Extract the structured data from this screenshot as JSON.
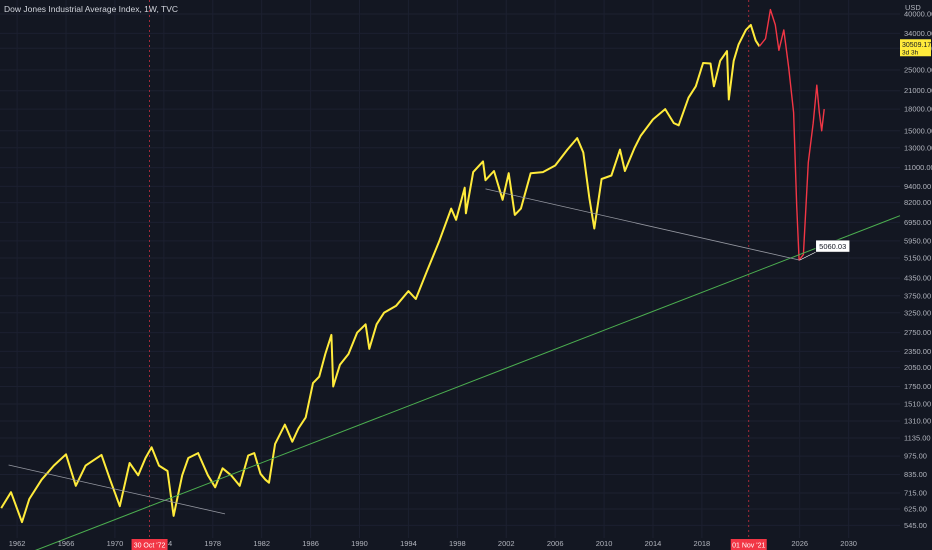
{
  "chart_data": {
    "type": "line",
    "title": "Dow Jones Industrial Average Index, 1W, TVC",
    "unit": "USD",
    "log_scale": true,
    "grid": true,
    "y_ticks": [
      545,
      625,
      715,
      835,
      975,
      1135,
      1310,
      1510,
      1750,
      2050,
      2350,
      2750,
      3250,
      3750,
      4350,
      5150,
      5950,
      6950,
      8200,
      9400,
      11000,
      13000,
      15000,
      18000,
      21000,
      25000,
      30000,
      34000,
      40000
    ],
    "y_tick_labels": [
      "545.00",
      "625.00",
      "715.00",
      "835.00",
      "975.00",
      "1135.00",
      "1310.00",
      "1510.00",
      "1750.00",
      "2050.00",
      "2350.00",
      "2750.00",
      "3250.00",
      "3750.00",
      "4350.00",
      "5150.00",
      "5950.00",
      "6950.00",
      "8200.00",
      "9400.00",
      "11000.00",
      "13000.00",
      "15000.00",
      "18000.00",
      "21000.00",
      "25000.00",
      "30000.00",
      "34000.00",
      "40000.00"
    ],
    "x_ticks": [
      1962,
      1966,
      1970,
      1974,
      1978,
      1982,
      1986,
      1990,
      1994,
      1998,
      2002,
      2006,
      2010,
      2014,
      2018,
      2026,
      2030
    ],
    "x_tick_labels": [
      "1962",
      "1966",
      "1970",
      "1974",
      "1978",
      "1982",
      "1986",
      "1990",
      "1994",
      "1998",
      "2002",
      "2006",
      "2010",
      "2014",
      "2018",
      "2026",
      "2030"
    ],
    "ylim": [
      490,
      45000
    ],
    "xlim": [
      1960.6,
      2034.2
    ],
    "highlight_dates": [
      {
        "label": "30 Oct '72",
        "x": 1972.83
      },
      {
        "label": "01 Nov '21",
        "x": 2021.83
      }
    ],
    "price_badge": {
      "value": "30509.17",
      "sub": "3d 3h",
      "y": 30509.17
    },
    "annotation": {
      "label": "5060.03",
      "x": 2026.0,
      "y": 5060.03
    },
    "series": [
      {
        "role": "price",
        "color": "#ffeb3b",
        "points": [
          [
            1960.7,
            630
          ],
          [
            1961.5,
            720
          ],
          [
            1962.4,
            560
          ],
          [
            1963.0,
            680
          ],
          [
            1964.0,
            800
          ],
          [
            1965.0,
            900
          ],
          [
            1966.0,
            990
          ],
          [
            1966.8,
            760
          ],
          [
            1967.6,
            900
          ],
          [
            1968.9,
            985
          ],
          [
            1969.6,
            800
          ],
          [
            1970.4,
            640
          ],
          [
            1971.2,
            920
          ],
          [
            1971.9,
            830
          ],
          [
            1972.5,
            960
          ],
          [
            1973.0,
            1050
          ],
          [
            1973.6,
            900
          ],
          [
            1974.3,
            860
          ],
          [
            1974.8,
            590
          ],
          [
            1975.5,
            830
          ],
          [
            1976.0,
            960
          ],
          [
            1976.8,
            1000
          ],
          [
            1977.6,
            830
          ],
          [
            1978.2,
            750
          ],
          [
            1978.8,
            880
          ],
          [
            1979.5,
            830
          ],
          [
            1980.2,
            760
          ],
          [
            1980.9,
            980
          ],
          [
            1981.4,
            1000
          ],
          [
            1981.9,
            840
          ],
          [
            1982.3,
            800
          ],
          [
            1982.6,
            780
          ],
          [
            1983.1,
            1080
          ],
          [
            1983.9,
            1270
          ],
          [
            1984.5,
            1100
          ],
          [
            1985.0,
            1230
          ],
          [
            1985.6,
            1350
          ],
          [
            1986.2,
            1800
          ],
          [
            1986.7,
            1900
          ],
          [
            1987.2,
            2300
          ],
          [
            1987.7,
            2700
          ],
          [
            1987.85,
            1750
          ],
          [
            1988.4,
            2100
          ],
          [
            1989.1,
            2300
          ],
          [
            1989.8,
            2750
          ],
          [
            1990.5,
            2950
          ],
          [
            1990.8,
            2400
          ],
          [
            1991.4,
            2950
          ],
          [
            1992.0,
            3250
          ],
          [
            1993.0,
            3450
          ],
          [
            1994.0,
            3900
          ],
          [
            1994.6,
            3650
          ],
          [
            1995.5,
            4600
          ],
          [
            1996.5,
            5900
          ],
          [
            1997.5,
            7800
          ],
          [
            1997.9,
            7100
          ],
          [
            1998.6,
            9300
          ],
          [
            1998.7,
            7500
          ],
          [
            1999.3,
            10600
          ],
          [
            2000.1,
            11600
          ],
          [
            2000.3,
            9900
          ],
          [
            2001.0,
            10700
          ],
          [
            2001.7,
            8400
          ],
          [
            2002.2,
            10500
          ],
          [
            2002.7,
            7400
          ],
          [
            2003.2,
            7800
          ],
          [
            2004.0,
            10500
          ],
          [
            2005.0,
            10600
          ],
          [
            2006.0,
            11200
          ],
          [
            2007.0,
            12800
          ],
          [
            2007.8,
            14100
          ],
          [
            2008.3,
            12500
          ],
          [
            2008.8,
            8500
          ],
          [
            2009.2,
            6600
          ],
          [
            2009.8,
            10000
          ],
          [
            2010.6,
            10300
          ],
          [
            2011.3,
            12800
          ],
          [
            2011.7,
            10700
          ],
          [
            2012.5,
            13000
          ],
          [
            2013.0,
            14400
          ],
          [
            2014.0,
            16500
          ],
          [
            2015.0,
            18000
          ],
          [
            2015.7,
            16000
          ],
          [
            2016.1,
            15700
          ],
          [
            2016.9,
            19800
          ],
          [
            2017.5,
            21800
          ],
          [
            2018.1,
            26500
          ],
          [
            2018.7,
            26400
          ],
          [
            2018.98,
            21800
          ],
          [
            2019.5,
            27000
          ],
          [
            2020.05,
            29300
          ],
          [
            2020.2,
            19500
          ],
          [
            2020.6,
            27000
          ],
          [
            2021.0,
            31000
          ],
          [
            2021.6,
            35000
          ],
          [
            2022.0,
            36500
          ],
          [
            2022.4,
            32000
          ],
          [
            2022.7,
            30509
          ]
        ]
      },
      {
        "role": "projection",
        "color": "#f23645",
        "points": [
          [
            2022.7,
            30509
          ],
          [
            2023.2,
            32500
          ],
          [
            2023.6,
            41500
          ],
          [
            2024.0,
            36500
          ],
          [
            2024.3,
            29500
          ],
          [
            2024.7,
            35000
          ],
          [
            2025.1,
            25500
          ],
          [
            2025.5,
            17500
          ],
          [
            2025.75,
            8000
          ],
          [
            2025.95,
            5060
          ],
          [
            2026.3,
            5300
          ],
          [
            2026.7,
            11500
          ],
          [
            2027.1,
            16000
          ],
          [
            2027.4,
            22000
          ],
          [
            2027.6,
            17500
          ],
          [
            2027.8,
            15000
          ],
          [
            2028.0,
            18000
          ]
        ]
      },
      {
        "role": "trendline-lower",
        "color": "#4caf50",
        "points": [
          [
            1961.0,
            400
          ],
          [
            2034.2,
            7350
          ]
        ]
      },
      {
        "role": "trendline-upper",
        "color": "#9598a1",
        "points": [
          [
            2000.3,
            9200
          ],
          [
            2026.0,
            5060
          ]
        ]
      },
      {
        "role": "trendline-early",
        "color": "#9598a1",
        "points": [
          [
            1961.3,
            905
          ],
          [
            1979.0,
            600
          ]
        ]
      }
    ]
  }
}
